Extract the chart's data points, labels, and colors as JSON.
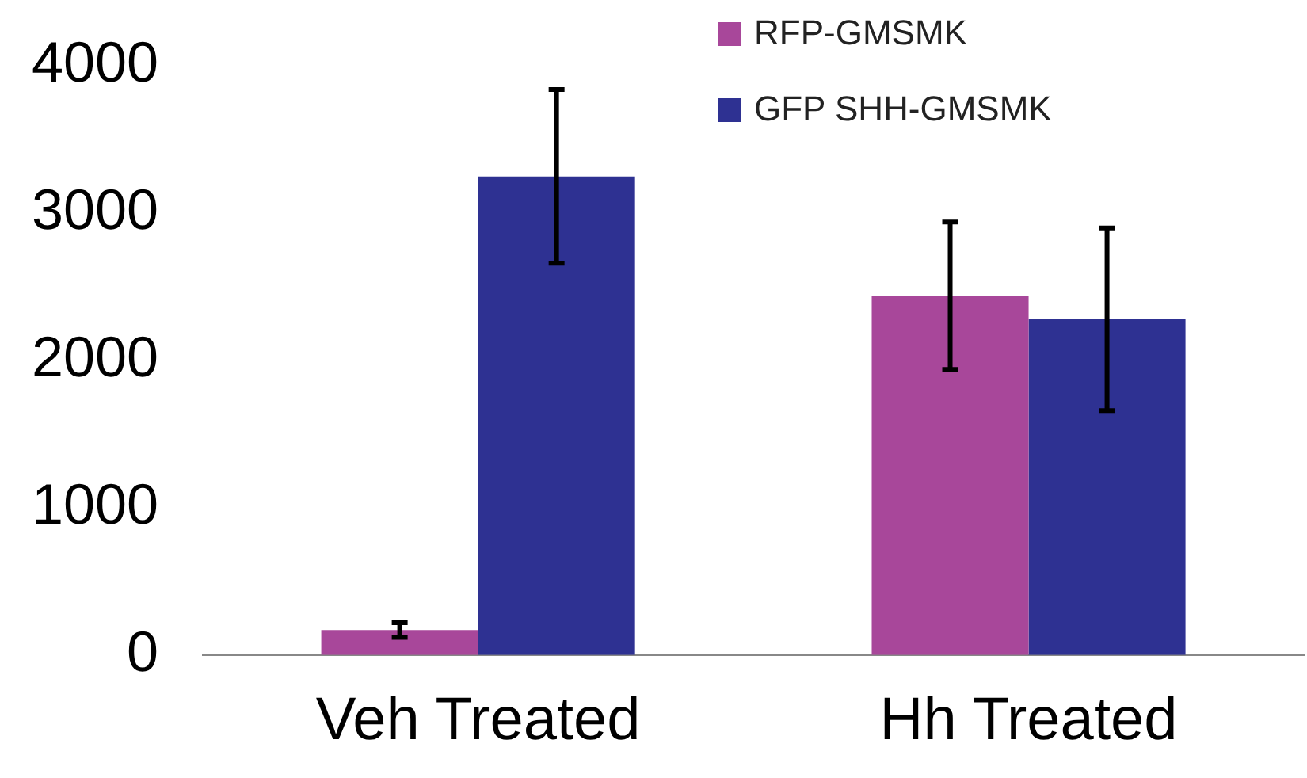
{
  "chart_data": {
    "type": "bar",
    "categories": [
      "Veh Treated",
      "Hh Treated"
    ],
    "series": [
      {
        "name": "RFP-GMSMK",
        "color": "#a8479a",
        "values": [
          170,
          2440
        ],
        "errors": [
          50,
          500
        ]
      },
      {
        "name": "GFP SHH-GMSMK",
        "color": "#2e3192",
        "values": [
          3250,
          2280
        ],
        "errors": [
          590,
          620
        ]
      }
    ],
    "ylim": [
      0,
      4000
    ],
    "yticks": [
      0,
      1000,
      2000,
      3000,
      4000
    ],
    "grid": false,
    "legend": "top right"
  }
}
